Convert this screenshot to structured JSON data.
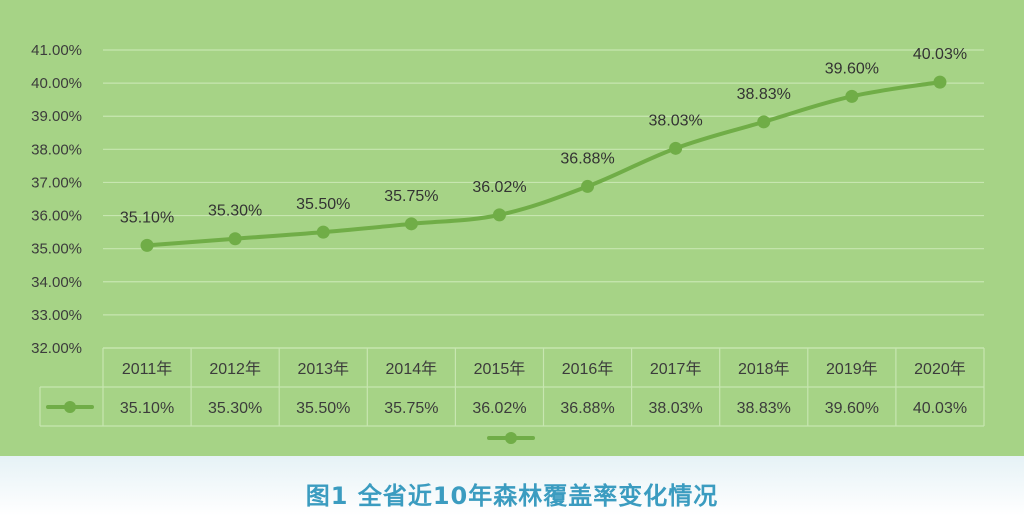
{
  "chart_data": {
    "type": "line",
    "title": "",
    "xlabel": "",
    "ylabel": "",
    "categories": [
      "2011年",
      "2012年",
      "2013年",
      "2014年",
      "2015年",
      "2016年",
      "2017年",
      "2018年",
      "2019年",
      "2020年"
    ],
    "series": [
      {
        "values": [
          35.1,
          35.3,
          35.5,
          35.75,
          36.02,
          36.88,
          38.03,
          38.83,
          39.6,
          40.03
        ],
        "labels": [
          "35.10%",
          "35.30%",
          "35.50%",
          "35.75%",
          "36.02%",
          "36.88%",
          "38.03%",
          "38.83%",
          "39.60%",
          "40.03%"
        ],
        "color": "#70ad47"
      }
    ],
    "ylim": [
      32,
      41
    ],
    "yticks": [
      "32.00%",
      "33.00%",
      "34.00%",
      "35.00%",
      "36.00%",
      "37.00%",
      "38.00%",
      "39.00%",
      "40.00%",
      "41.00%"
    ],
    "grid": true,
    "data_table": true,
    "legend_placement": "bottom"
  },
  "caption": "图1  全省近10年森林覆盖率变化情况",
  "colors": {
    "panel_background": "#a6d386",
    "gridline": "#c7e6b0",
    "line": "#70ad47",
    "caption_text": "#3b9cc0"
  }
}
